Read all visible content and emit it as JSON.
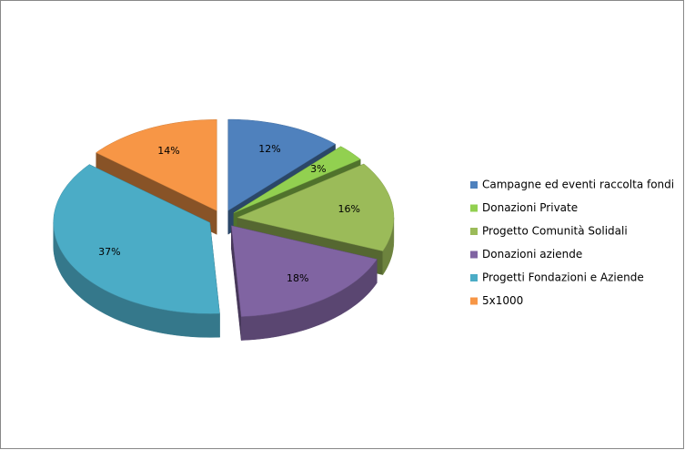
{
  "chart_data": {
    "type": "pie3d",
    "categories": [
      "Campagne ed eventi raccolta fondi",
      "Donazioni Private",
      "Progetto Comunità Solidali",
      "Donazioni aziende",
      "Progetti Fondazioni e Aziende",
      "5x1000"
    ],
    "values": [
      12,
      3,
      16,
      18,
      37,
      14
    ],
    "value_labels": [
      "12%",
      "3%",
      "16%",
      "18%",
      "37%",
      "14%"
    ],
    "colors": [
      "#4f81bd",
      "#92d050",
      "#9bbb59",
      "#8064a2",
      "#4bacc6",
      "#f79646"
    ],
    "legend": "right"
  }
}
